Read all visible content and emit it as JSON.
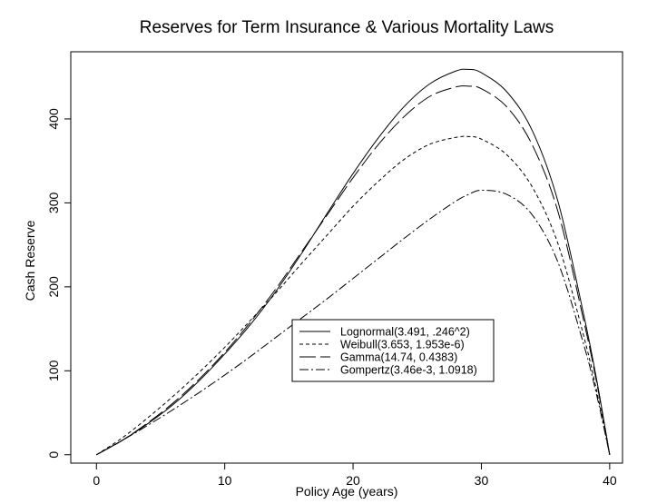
{
  "chart_data": {
    "type": "line",
    "title": "Reserves for Term Insurance & Various Mortality Laws",
    "xlabel": "Policy Age (years)",
    "ylabel": "Cash Reserve",
    "xlim": [
      -2,
      41
    ],
    "ylim": [
      -10,
      480
    ],
    "xticks": [
      0,
      10,
      20,
      30,
      40
    ],
    "yticks": [
      0,
      100,
      200,
      300,
      400
    ],
    "grid": false,
    "legend_position": "lower-center",
    "series": [
      {
        "name": "Lognormal(3.491, .246^2)",
        "dash": "solid",
        "x": [
          0,
          2,
          4,
          6,
          8,
          10,
          12,
          14,
          16,
          18,
          20,
          22,
          24,
          26,
          28,
          29,
          30,
          32,
          34,
          36,
          38,
          39,
          40
        ],
        "y": [
          0,
          17,
          37,
          60,
          88,
          120,
          155,
          195,
          240,
          288,
          335,
          378,
          415,
          442,
          457,
          459,
          455,
          432,
          385,
          300,
          165,
          88,
          0
        ]
      },
      {
        "name": "Weibull(3.653, 1.953e-6)",
        "dash": "4,3",
        "x": [
          0,
          2,
          4,
          6,
          8,
          10,
          12,
          14,
          16,
          18,
          20,
          22,
          24,
          26,
          28,
          29,
          30,
          32,
          34,
          36,
          38,
          39,
          40
        ],
        "y": [
          0,
          20,
          44,
          70,
          98,
          128,
          160,
          193,
          228,
          262,
          296,
          326,
          352,
          370,
          378,
          379,
          376,
          357,
          318,
          250,
          140,
          75,
          0
        ]
      },
      {
        "name": "Gamma(14.74, 0.4383)",
        "dash": "18,5",
        "x": [
          0,
          2,
          4,
          6,
          8,
          10,
          12,
          14,
          16,
          18,
          20,
          22,
          24,
          26,
          28,
          29,
          30,
          32,
          34,
          36,
          38,
          39,
          40
        ],
        "y": [
          0,
          17,
          38,
          62,
          90,
          122,
          158,
          198,
          242,
          286,
          330,
          370,
          403,
          427,
          438,
          439,
          436,
          414,
          368,
          288,
          158,
          85,
          0
        ]
      },
      {
        "name": "Gompertz(3.46e-3, 1.0918)",
        "dash": "10,3,2,3",
        "x": [
          0,
          2,
          4,
          6,
          8,
          10,
          12,
          14,
          16,
          18,
          20,
          22,
          24,
          26,
          28,
          29,
          30,
          32,
          34,
          36,
          38,
          39,
          40
        ],
        "y": [
          0,
          17,
          35,
          54,
          74,
          95,
          117,
          140,
          163,
          186,
          210,
          234,
          258,
          281,
          302,
          310,
          315,
          310,
          285,
          228,
          130,
          70,
          0
        ]
      }
    ]
  }
}
